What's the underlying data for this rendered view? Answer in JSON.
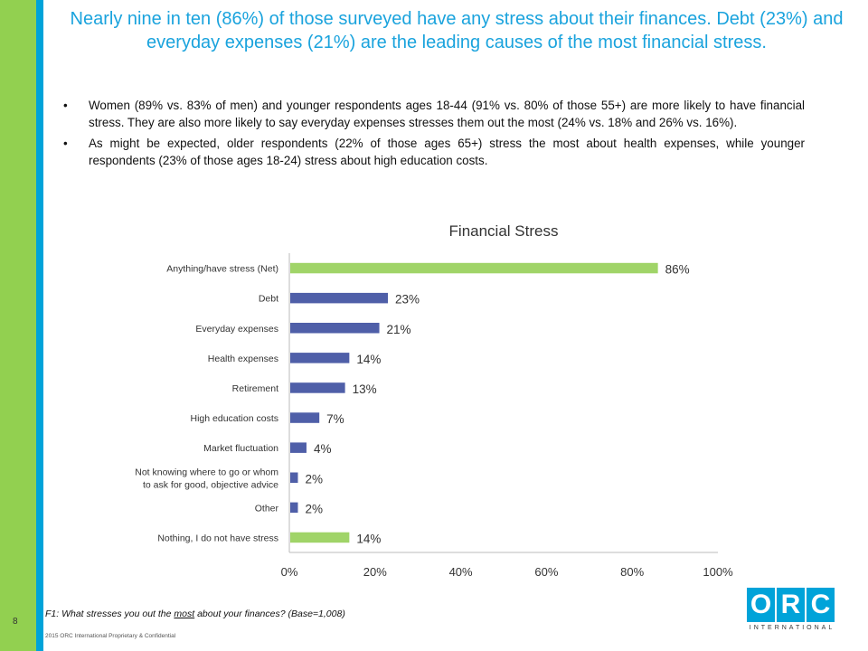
{
  "slide": {
    "title": "Nearly nine in ten (86%) of those surveyed have any stress about their finances.  Debt (23%) and everyday expenses (21%) are the leading causes of the most financial stress.",
    "bullets": [
      "Women (89% vs. 83% of men) and younger respondents ages 18-44 (91% vs. 80% of those 55+) are more likely to have financial stress.  They are also more likely to say everyday expenses stresses them out the most (24% vs. 18% and 26% vs. 16%).",
      "As might be expected, older respondents (22% of those ages 65+) stress the most about health expenses, while younger respondents (23% of those ages 18-24) stress about high education costs."
    ],
    "bullet_glyph": "•",
    "page_number": "8",
    "footnote": {
      "prefix": "F1:   What stresses you out the ",
      "emphasis": "most",
      "suffix": " about your finances? (Base=1,008)"
    },
    "copyright": "2015 ORC International  Proprietary & Confidential",
    "logo": {
      "letters": [
        "O",
        "R",
        "C"
      ],
      "subtitle": "INTERNATIONAL"
    }
  },
  "colors": {
    "green_band": "#92d050",
    "blue_stripe": "#00a3d9",
    "title": "#1aa3dd",
    "bar_green": "#a0d468",
    "bar_blue": "#4f5fa8"
  },
  "chart_data": {
    "type": "bar",
    "orientation": "horizontal",
    "title": "Financial Stress",
    "categories": [
      "Anything/have stress (Net)",
      "Debt",
      "Everyday expenses",
      "Health expenses",
      "Retirement",
      "High education costs",
      "Market fluctuation",
      "Not knowing where to go or whom to ask for good, objective advice",
      "Other",
      "Nothing, I do not have stress"
    ],
    "values": [
      86,
      23,
      21,
      14,
      13,
      7,
      4,
      2,
      2,
      14
    ],
    "value_labels": [
      "86%",
      "23%",
      "21%",
      "14%",
      "13%",
      "7%",
      "4%",
      "2%",
      "2%",
      "14%"
    ],
    "highlight": [
      true,
      false,
      false,
      false,
      false,
      false,
      false,
      false,
      false,
      true
    ],
    "xlim": [
      0,
      100
    ],
    "xticks": [
      "0%",
      "20%",
      "40%",
      "60%",
      "80%",
      "100%"
    ],
    "xlabel": "",
    "ylabel": "",
    "grid": false,
    "legend": "none"
  }
}
